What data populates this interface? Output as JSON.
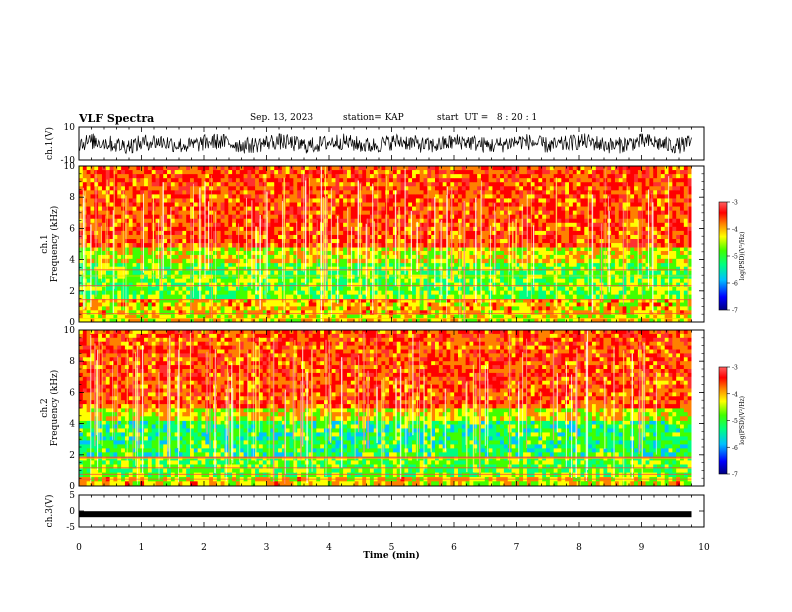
{
  "header": {
    "title": "VLF Spectra",
    "date": "Sep. 13, 2023",
    "station": "station= KAP",
    "start_ut": "start  UT =   8 : 20 : 1"
  },
  "chart_data": [
    {
      "type": "line",
      "panel": "ch1-waveform",
      "ylabel": "ch.1(V)",
      "ylim": [
        -10,
        10
      ],
      "yticks": [
        "10",
        "-10"
      ],
      "x_range_min": [
        0,
        9.8
      ],
      "series": [
        {
          "description": "noisy voltage trace centered near 0 V with amplitude about ±5 V"
        }
      ]
    },
    {
      "type": "heatmap",
      "panel": "ch1-spectrogram",
      "ylabel": "ch.1\nFrequency (kHz)",
      "ylabel_line1": "ch.1",
      "ylabel_line2": "Frequency (kHz)",
      "ylim": [
        0,
        10
      ],
      "yticks": [
        "0",
        "2",
        "4",
        "6",
        "8",
        "10"
      ],
      "x_range_min": [
        0,
        9.8
      ],
      "colorbar": {
        "label": "log(PSD)(V²/Hz)",
        "range": [
          -7,
          -3
        ],
        "ticks": [
          "-3",
          "-4",
          "-5",
          "-6",
          "-7"
        ]
      },
      "bands": [
        {
          "from_khz": 0,
          "to_khz": 0.5,
          "level": -4.5
        },
        {
          "from_khz": 0.5,
          "to_khz": 1.5,
          "level": -4.3
        },
        {
          "from_khz": 1.5,
          "to_khz": 3.8,
          "level": -5.0
        },
        {
          "from_khz": 3.8,
          "to_khz": 4.8,
          "level": -4.5
        },
        {
          "from_khz": 4.8,
          "to_khz": 10,
          "level": -3.7
        }
      ]
    },
    {
      "type": "heatmap",
      "panel": "ch2-spectrogram",
      "ylabel_line1": "ch.2",
      "ylabel_line2": "Frequency (kHz)",
      "ylim": [
        0,
        10
      ],
      "yticks": [
        "0",
        "2",
        "4",
        "6",
        "8",
        "10"
      ],
      "x_range_min": [
        0,
        9.8
      ],
      "colorbar": {
        "label": "log(PSD)(V²/Hz)",
        "range": [
          -7,
          -3
        ],
        "ticks": [
          "-3",
          "-4",
          "-5",
          "-6",
          "-7"
        ]
      },
      "bands": [
        {
          "from_khz": 0,
          "to_khz": 0.6,
          "level": -4.4
        },
        {
          "from_khz": 0.6,
          "to_khz": 1.9,
          "level": -5.0
        },
        {
          "from_khz": 1.9,
          "to_khz": 4.2,
          "level": -5.3
        },
        {
          "from_khz": 4.2,
          "to_khz": 5.0,
          "level": -4.5
        },
        {
          "from_khz": 5.0,
          "to_khz": 10,
          "level": -3.7
        }
      ]
    },
    {
      "type": "line",
      "panel": "ch3-waveform",
      "ylabel": "ch.3(V)",
      "ylim": [
        -5,
        5
      ],
      "yticks": [
        "5",
        "0",
        "-5"
      ],
      "x_range_min": [
        0,
        9.8
      ],
      "series": [
        {
          "description": "nearly constant thick trace at about -1 V"
        }
      ]
    }
  ],
  "xaxis": {
    "label": "Time  (min)",
    "xlim": [
      0,
      10
    ],
    "ticks": [
      "0",
      "1",
      "2",
      "3",
      "4",
      "5",
      "6",
      "7",
      "8",
      "9",
      "10"
    ]
  },
  "colors": {
    "colormap": [
      "#000080",
      "#0000ff",
      "#00c0ff",
      "#00ff80",
      "#40ff00",
      "#ffff00",
      "#ff8000",
      "#ff0000",
      "#ff3030"
    ]
  }
}
